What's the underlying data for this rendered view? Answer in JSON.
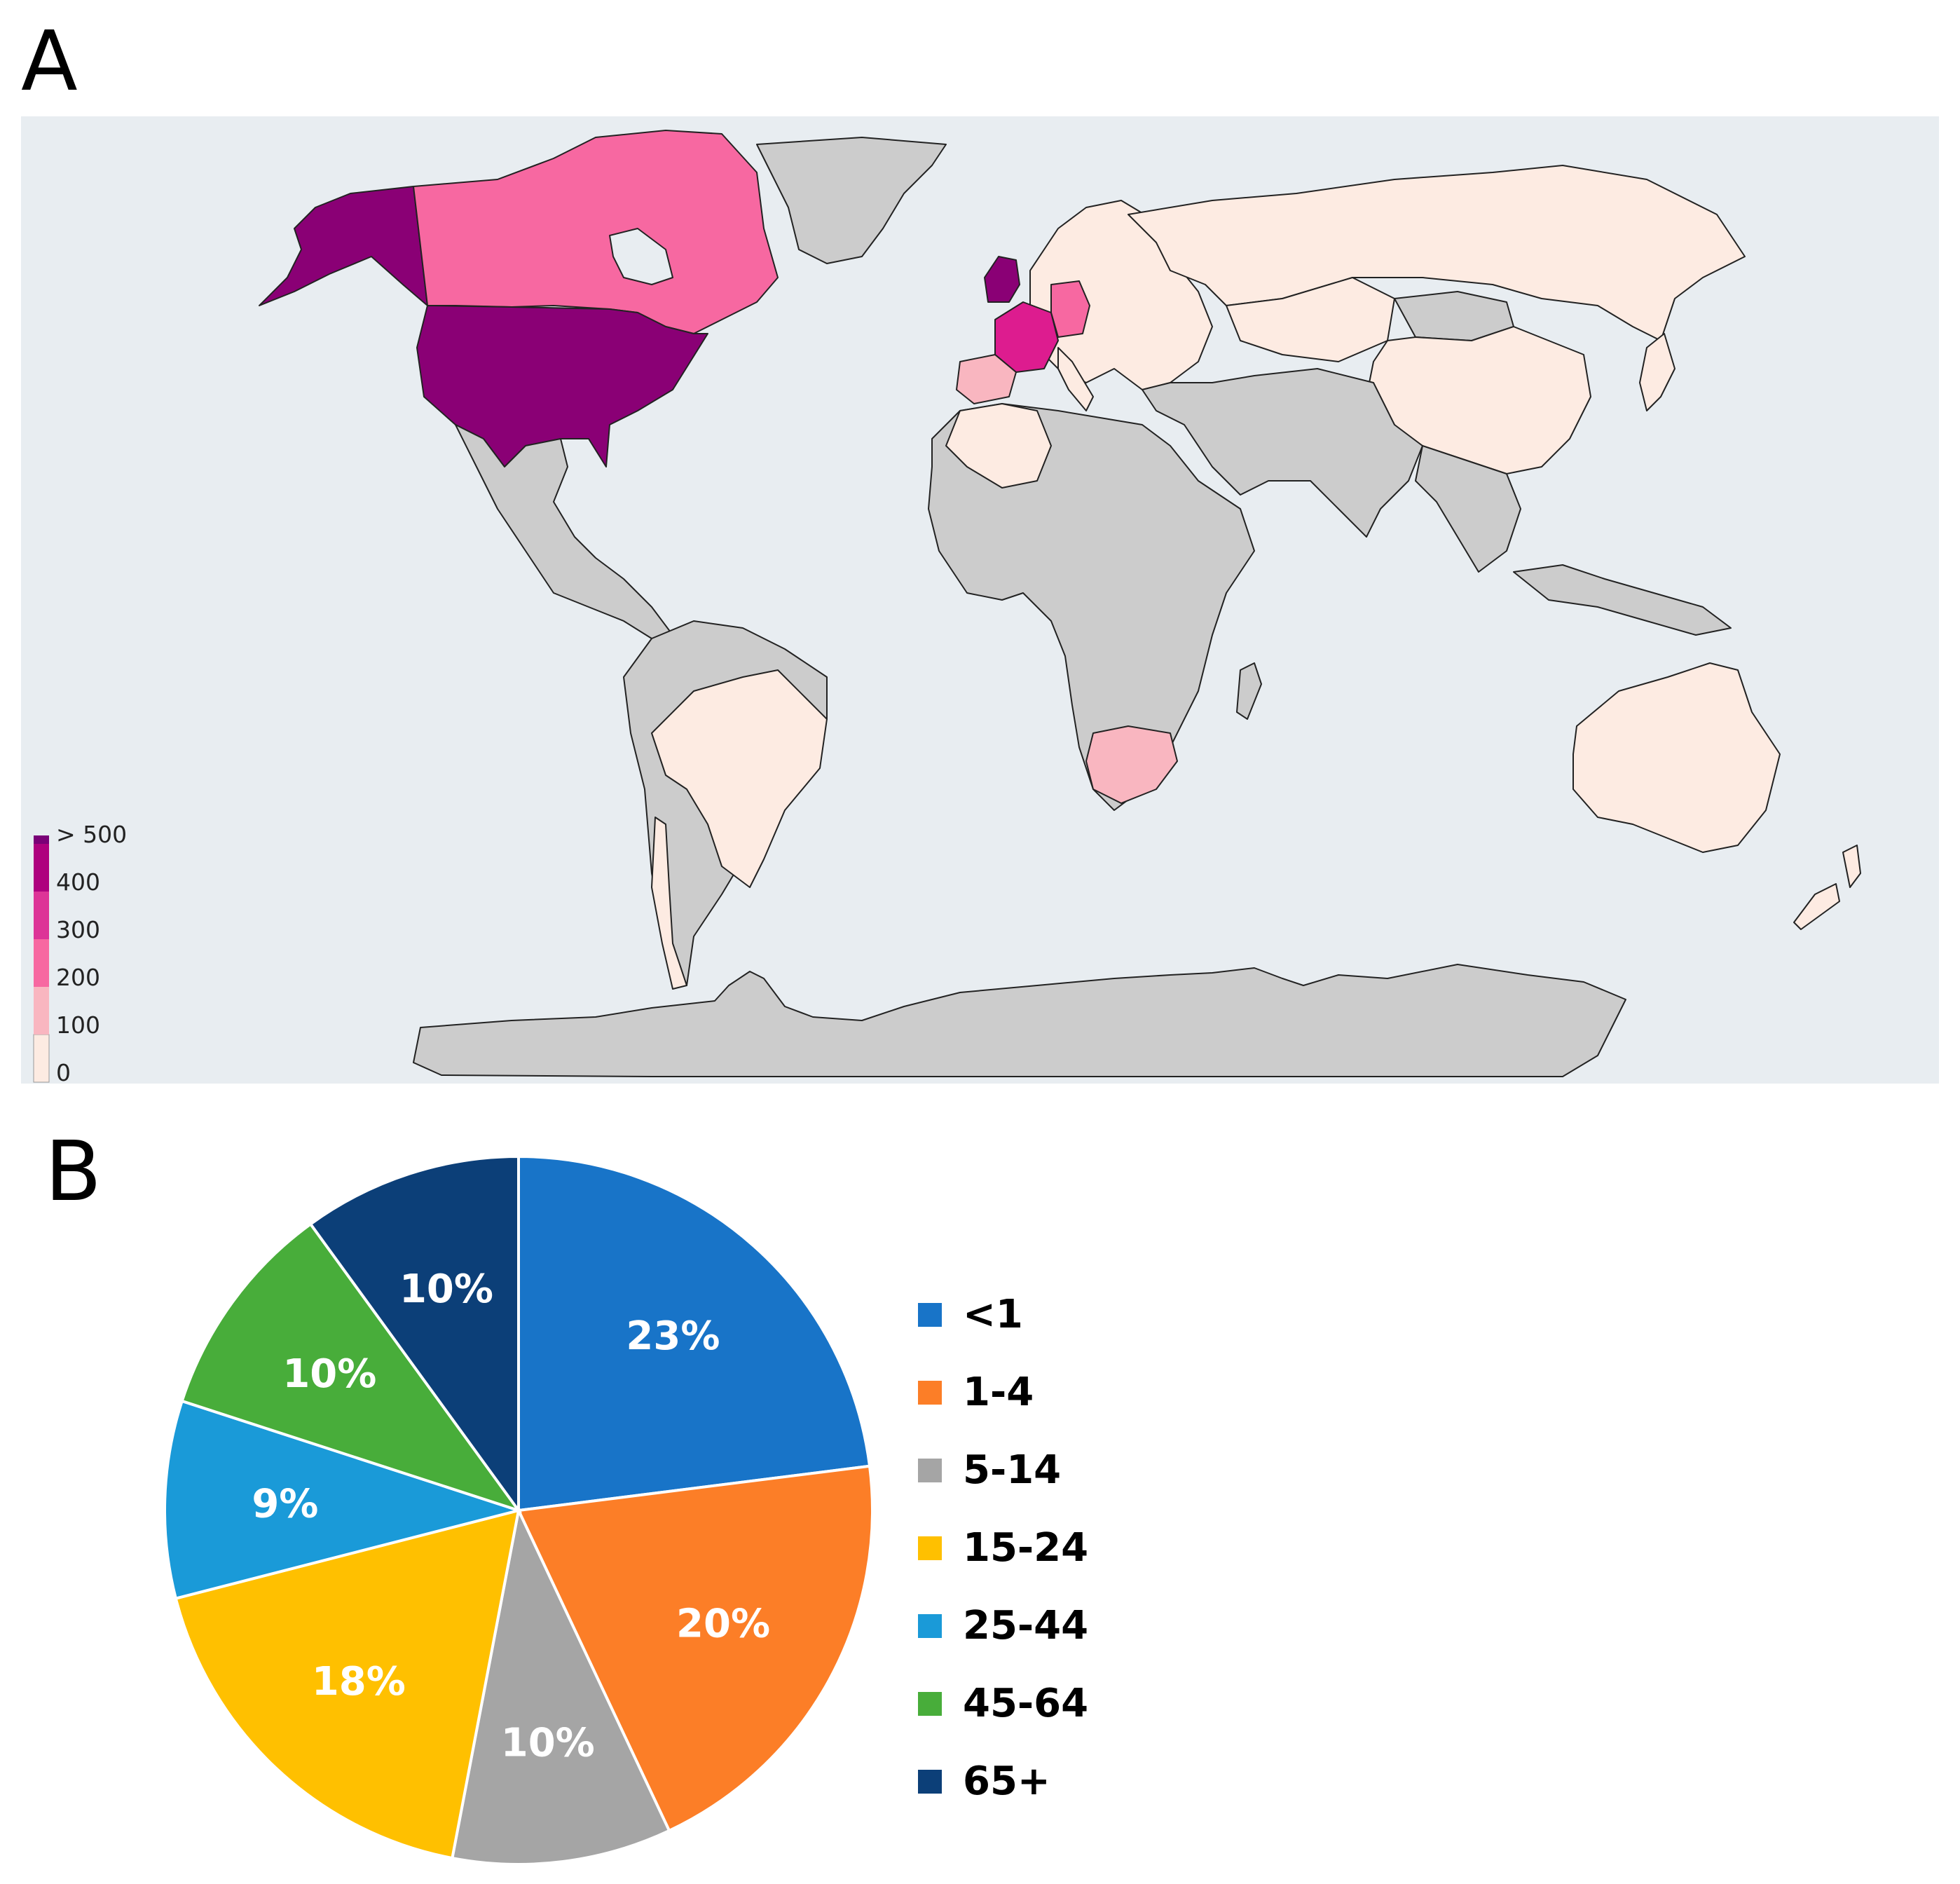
{
  "panel_a": {
    "label": "A"
  },
  "panel_b": {
    "label": "B"
  },
  "map": {
    "ocean_color": "#e8edf1",
    "no_data_color": "#cccccc",
    "color_scale": {
      "labels": [
        "0",
        "100",
        "200",
        "300",
        "400",
        "> 500"
      ],
      "colors": [
        "#fdebe2",
        "#f9b6c0",
        "#f768a1",
        "#dd3497",
        "#ae017e",
        "#7a0177"
      ]
    },
    "countries": [
      {
        "name": "United States",
        "bin": "> 500",
        "color": "#8a0075"
      },
      {
        "name": "United Kingdom",
        "bin": "> 500",
        "color": "#8a0075"
      },
      {
        "name": "Canada",
        "bin": "200-300",
        "color": "#f768a1"
      },
      {
        "name": "France",
        "bin": "300-400",
        "color": "#dd1c8f"
      },
      {
        "name": "Germany",
        "bin": "200-300",
        "color": "#f768a1"
      },
      {
        "name": "Spain",
        "bin": "100-200",
        "color": "#f9b6c0"
      },
      {
        "name": "South Africa",
        "bin": "100-200",
        "color": "#f9b6c0"
      },
      {
        "name": "Russia",
        "bin": "0-100",
        "color": "#fdebe2"
      },
      {
        "name": "China",
        "bin": "0-100",
        "color": "#fdebe2"
      },
      {
        "name": "Brazil",
        "bin": "0-100",
        "color": "#fdebe2"
      },
      {
        "name": "Australia",
        "bin": "0-100",
        "color": "#fdebe2"
      },
      {
        "name": "Algeria",
        "bin": "0-100",
        "color": "#fdebe2"
      }
    ]
  },
  "chart_data": {
    "type": "pie",
    "categories": [
      "<1",
      "1-4",
      "5-14",
      "15-24",
      "25-44",
      "45-64",
      "65+"
    ],
    "values": [
      23,
      20,
      10,
      18,
      9,
      10,
      10
    ],
    "labels": [
      "23%",
      "20%",
      "10%",
      "18%",
      "9%",
      "10%",
      "10%"
    ],
    "colors": [
      "#1874c8",
      "#fc7e27",
      "#a5a5a5",
      "#ffc000",
      "#1a9ad8",
      "#48ad3a",
      "#0c3f78"
    ],
    "legend_position": "right",
    "start": "top",
    "direction": "clockwise"
  }
}
